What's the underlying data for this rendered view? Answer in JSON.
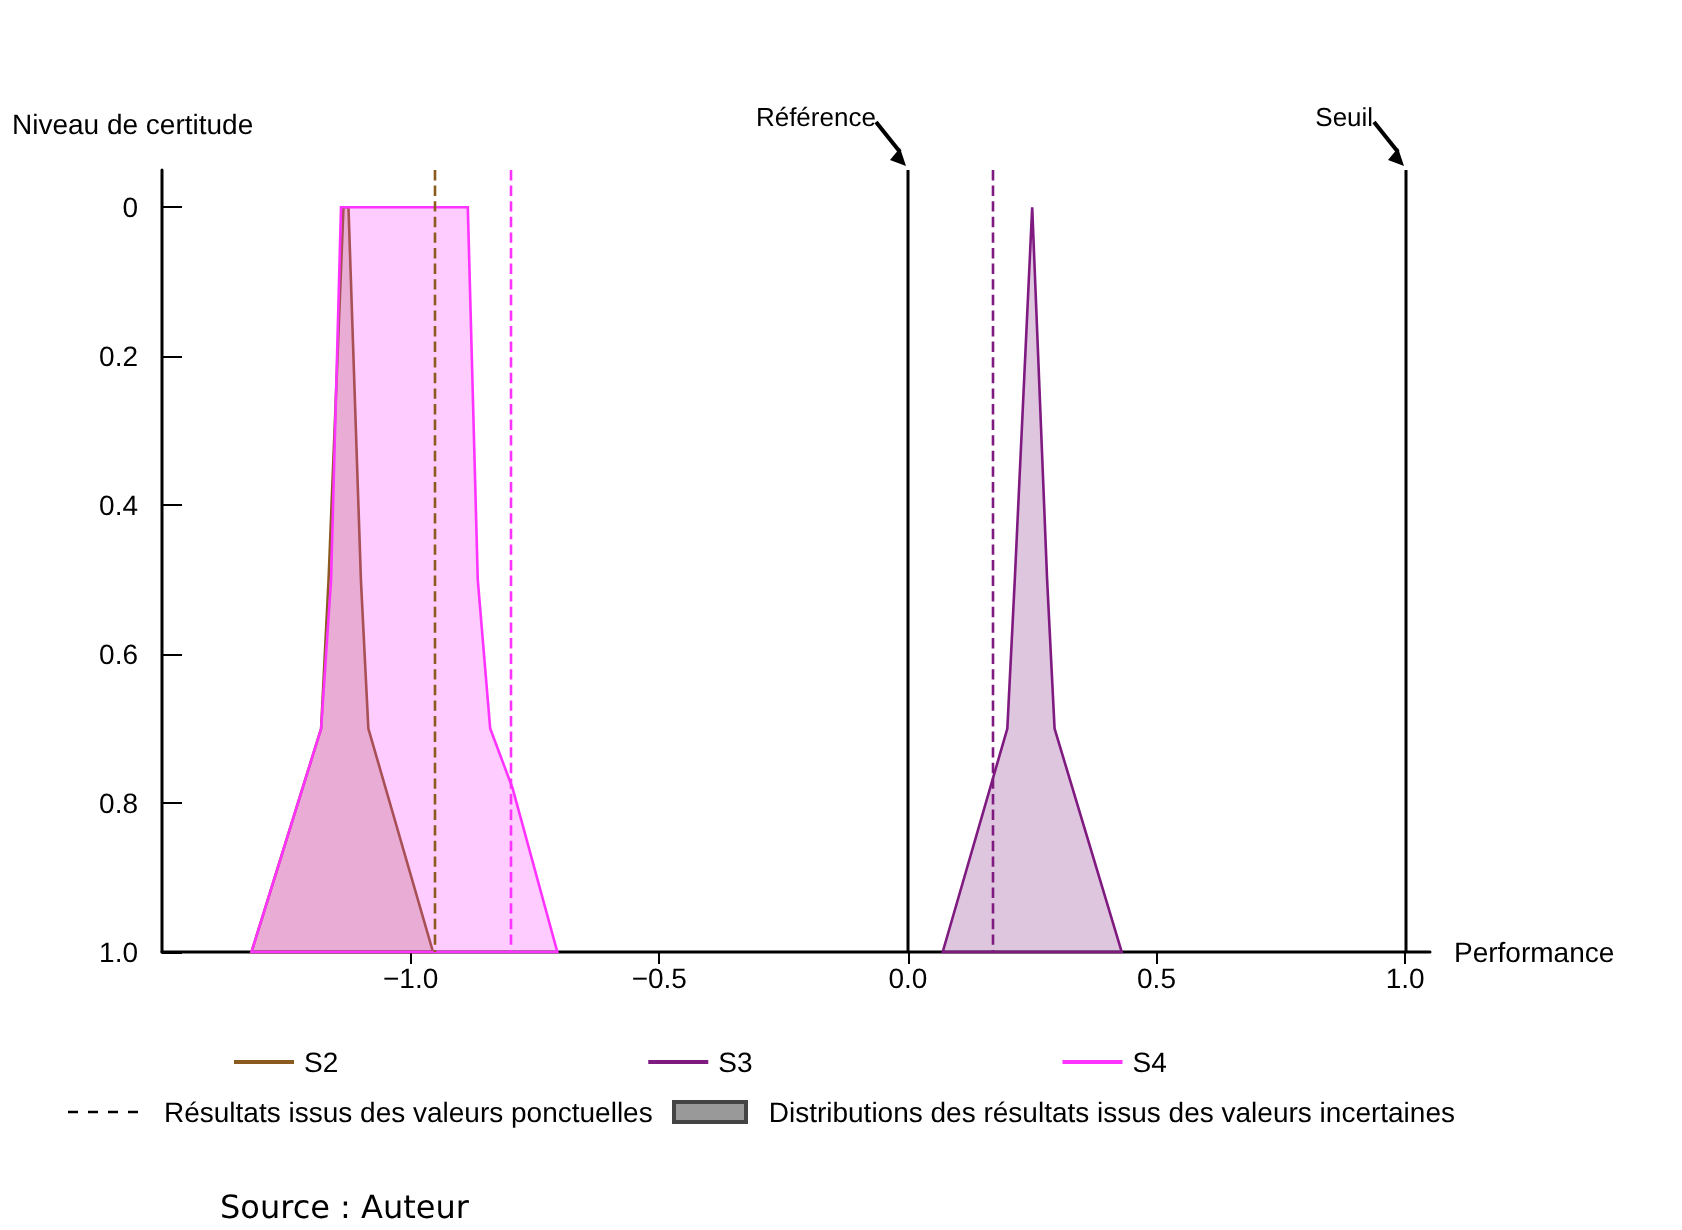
{
  "chart_data": {
    "type": "area",
    "xlabel": "Performance",
    "ylabel": "Niveau de certitude",
    "xlim": [
      -1.5,
      1.05
    ],
    "ylim": [
      1.0,
      -0.05
    ],
    "xticks": [
      {
        "value": -1,
        "label": "−1.0"
      },
      {
        "value": -0.5,
        "label": "−0.5"
      },
      {
        "value": 0,
        "label": "0.0"
      },
      0.5,
      {
        "value": 1,
        "label": "1.0"
      }
    ],
    "yticks": [
      0,
      0.2,
      0.4,
      0.6,
      0.8,
      {
        "value": 1,
        "label": "1.0"
      }
    ],
    "series": [
      {
        "name": "S2",
        "color": "#8b5a1e",
        "x": [
          -1.32,
          -1.18,
          -1.165,
          -1.135,
          -1.125,
          -1.1,
          -1.085,
          -0.955
        ],
        "values": [
          1,
          0.7,
          0.5,
          0,
          0,
          0.5,
          0.7,
          1
        ]
      },
      {
        "name": "S3",
        "color": "#7f1a80",
        "x": [
          0.07,
          0.2,
          0.215,
          0.25,
          0.28,
          0.295,
          0.43
        ],
        "values": [
          1,
          0.7,
          0.5,
          0,
          0.5,
          0.7,
          1
        ]
      },
      {
        "name": "S4",
        "color": "#ff33ff",
        "x": [
          -1.32,
          -1.18,
          -1.16,
          -1.14,
          -0.885,
          -0.865,
          -0.84,
          -0.795,
          -0.705
        ],
        "values": [
          1,
          0.7,
          0.5,
          0,
          0,
          0.5,
          0.7,
          0.78,
          1
        ]
      }
    ],
    "ref_lines": [
      {
        "axis": "x",
        "value": 0,
        "label": "Référence",
        "color": "#000000",
        "line_style": "solid"
      },
      {
        "axis": "x",
        "value": 1,
        "label": "Seuil",
        "color": "#000000",
        "line_style": "solid"
      },
      {
        "axis": "x",
        "value": -0.955,
        "label": null,
        "color": "#8b5a1e",
        "line_style": "dashed"
      },
      {
        "axis": "x",
        "value": -0.795,
        "label": null,
        "color": "#ff33ff",
        "line_style": "dashed"
      },
      {
        "axis": "x",
        "value": 0.168,
        "label": null,
        "color": "#7f1a80",
        "line_style": "dashed"
      }
    ],
    "legend": "bottom",
    "grid": false,
    "annotations": [
      "Résultats issus des valeurs ponctuelles",
      "Distributions des résultats issus des valeurs incertaines",
      "Source : Auteur"
    ]
  }
}
